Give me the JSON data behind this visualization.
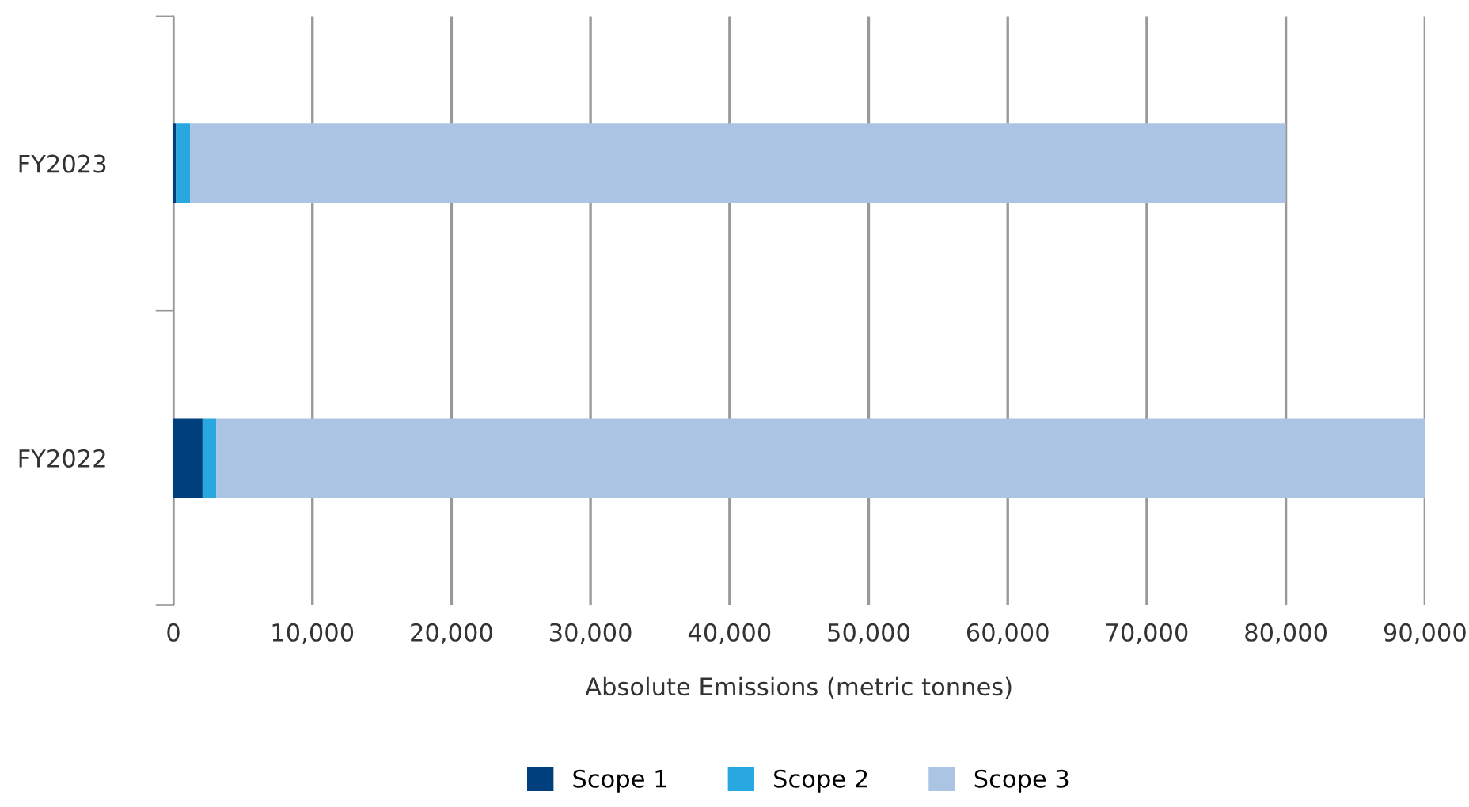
{
  "chart_data": {
    "type": "bar",
    "orientation": "horizontal",
    "stacked": true,
    "categories": [
      "FY2023",
      "FY2022"
    ],
    "series": [
      {
        "name": "Scope 1",
        "color": "#003f7d",
        "values": [
          200,
          2100
        ]
      },
      {
        "name": "Scope 2",
        "color": "#29a8e0",
        "values": [
          1000,
          1000
        ]
      },
      {
        "name": "Scope 3",
        "color": "#abc4e3",
        "values": [
          78800,
          86900
        ]
      }
    ],
    "xlim": [
      0,
      90000
    ],
    "xticks": [
      {
        "value": 0,
        "label": "0"
      },
      {
        "value": 10000,
        "label": "10,000"
      },
      {
        "value": 20000,
        "label": "20,000"
      },
      {
        "value": 30000,
        "label": "30,000"
      },
      {
        "value": 40000,
        "label": "40,000"
      },
      {
        "value": 50000,
        "label": "50,000"
      },
      {
        "value": 60000,
        "label": "60,000"
      },
      {
        "value": 70000,
        "label": "70,000"
      },
      {
        "value": 80000,
        "label": "80,000"
      },
      {
        "value": 90000,
        "label": "90,000"
      }
    ],
    "xlabel": "Absolute Emissions (metric tonnes)",
    "grid": "x",
    "legend": "bottom"
  }
}
